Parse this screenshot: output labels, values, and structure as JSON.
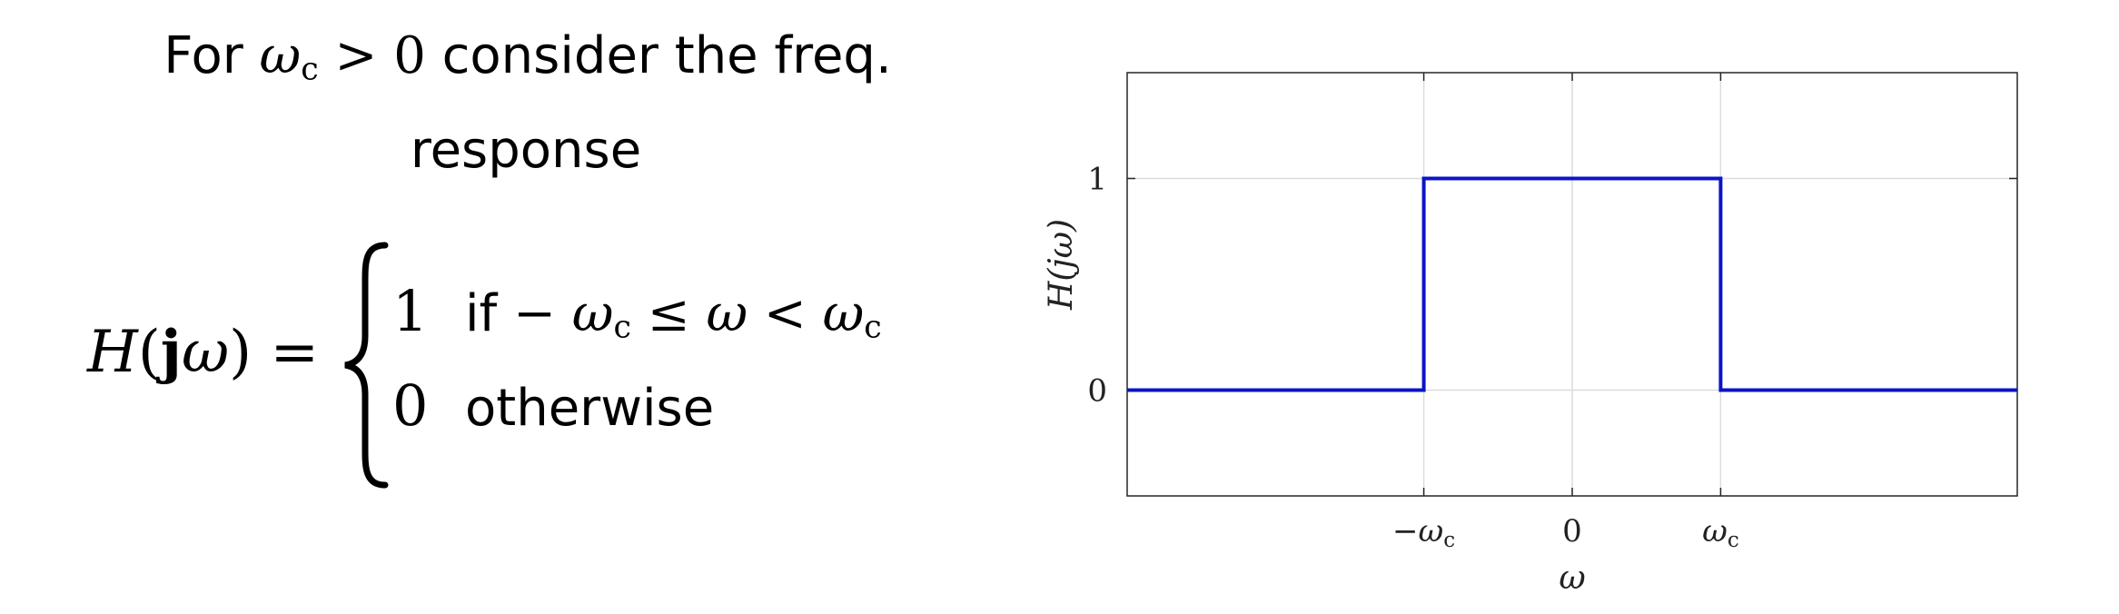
{
  "text": {
    "intro_pre": "For ",
    "intro_cond_sym": "ω",
    "intro_cond_sub": "c",
    "intro_cond_rel": " > 0",
    "intro_post": " consider the freq.",
    "intro_line2": "response",
    "eq_lhs_H": "H",
    "eq_lhs_open": "(",
    "eq_lhs_j": "j",
    "eq_lhs_w": "ω",
    "eq_lhs_close": ") =",
    "case1_value": "1",
    "case1_if": "if ",
    "case1_cond_a": " − ω",
    "case1_cond_a_sub": "c",
    "case1_cond_b": " ≤ ω < ω",
    "case1_cond_b_sub": "c",
    "case2_value": "0",
    "case2_cond": "otherwise"
  },
  "chart_data": {
    "type": "line",
    "xlabel": "ω",
    "ylabel": "H(jω)",
    "xlim": [
      -2,
      2
    ],
    "ylim": [
      -0.5,
      1.5
    ],
    "x_ticks": [
      {
        "value": -0.667,
        "sym": "−ω",
        "sub": "c"
      },
      {
        "value": 0,
        "sym": "0",
        "sub": ""
      },
      {
        "value": 0.667,
        "sym": "ω",
        "sub": "c"
      }
    ],
    "y_ticks": [
      {
        "value": 0,
        "label": "0"
      },
      {
        "value": 1,
        "label": "1"
      }
    ],
    "grid": true,
    "series": [
      {
        "color": "#0a14c8",
        "x": [
          -2,
          -0.667,
          -0.667,
          0.667,
          0.667,
          2
        ],
        "y": [
          0,
          0,
          1,
          1,
          0,
          0
        ]
      }
    ]
  }
}
